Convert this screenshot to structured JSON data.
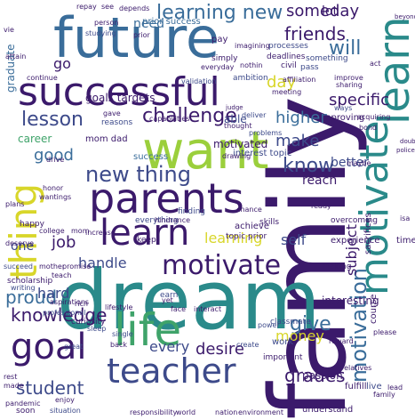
{
  "palette": {
    "navy": "#3b1a6b",
    "indigo": "#3d4a8a",
    "blue": "#3a6d9a",
    "teal": "#2a8a8a",
    "green": "#3fa36a",
    "lime": "#9bcf3c",
    "yellow": "#d8d62a"
  },
  "words": {
    "family": "family",
    "dream": "dream",
    "future": "future",
    "want": "want",
    "successful": "successful",
    "motivate_big": "motivate",
    "learn_big": "learn",
    "parents": "parents",
    "goal": "goal",
    "life": "life",
    "thing": "thing",
    "teacher": "teacher",
    "learn_mid": "learn",
    "motivation": "motivation",
    "new_thing": "new thing",
    "learning_new": "learning new",
    "know": "know",
    "lesson": "lesson",
    "challenge": "challenge",
    "friends": "friends",
    "will": "will",
    "someday": "someday",
    "lot": "lot",
    "student": "student",
    "knowledge": "knowledge",
    "proud": "proud",
    "give": "give",
    "grades": "grades",
    "make": "make",
    "higher": "higher",
    "specific": "specific",
    "hard": "hard",
    "money": "money",
    "desire": "desire",
    "every": "every",
    "self": "self",
    "learning": "learning",
    "job": "job",
    "handle": "handle",
    "good": "good",
    "day": "day",
    "subject": "subject",
    "go": "go",
    "need": "need",
    "graduate": "graduate",
    "career": "career",
    "better": "better",
    "reach": "reach",
    "able": "able",
    "one": "one",
    "goals_targets": "goals targets",
    "motivated": "motivated",
    "interest_topic": "interest topic",
    "mom_dad": "mom dad",
    "prior_success": "prior success",
    "success": "success",
    "interesting": "interesting",
    "experience": "experience",
    "improving": "improving",
    "work": "work",
    "passion": "passion",
    "course": "course",
    "fulfill": "fulfill",
    "live": "live",
    "classmate": "classmate",
    "power": "power",
    "earn": "earn",
    "time": "time",
    "sacrifices": "sacrifices",
    "achieve": "achieve",
    "topic_prior": "topic prior",
    "everything": "everything",
    "making": "making",
    "finding": "finding",
    "skills": "skills",
    "simply": "simply",
    "deadlines": "deadlines",
    "processes": "processes",
    "something": "something",
    "ambition": "ambition",
    "civil": "civil",
    "pass": "pass",
    "ways": "ways",
    "acquiring": "acquiring",
    "deliver": "deliver",
    "thought": "thought",
    "problems": "problems",
    "keep": "keep",
    "overcoming": "overcoming",
    "hindrance": "hindrance",
    "drive": "drive",
    "important": "important",
    "reasons": "reasons",
    "gave": "gave",
    "validation": "validation",
    "person": "person",
    "prior": "prior",
    "pay": "pay",
    "see": "see",
    "depends": "depends",
    "repay": "repay",
    "studying": "studying",
    "continue": "continue",
    "vie": "vie",
    "attain": "attain",
    "happy": "happy",
    "scholarship": "scholarship",
    "writing": "writing",
    "aspirations": "aspirations",
    "professional": "professional",
    "curiosity": "curiosity",
    "sleep": "sleep",
    "single": "single",
    "lifestyle": "lifestyle",
    "rich": "rich",
    "college": "college",
    "mother": "mother",
    "mom": "mom",
    "promise": "promise",
    "teach": "teach",
    "deserve": "deserve",
    "wantings": "wantings",
    "honor": "honor",
    "plans": "plans",
    "succeed": "succeed",
    "understand": "understand",
    "situation": "situation",
    "responsibility": "responsibility",
    "environment": "environment",
    "relatives": "relatives",
    "please": "please",
    "reward": "reward",
    "create": "create",
    "face": "face",
    "interact": "interact",
    "great": "great",
    "increase": "increase",
    "everyday": "everyday",
    "imagining": "imagining",
    "affiliation": "affiliation",
    "nothin": "nothin",
    "sharing": "sharing",
    "improve": "improve",
    "meeting": "meeting",
    "bond": "bond",
    "doubt": "doubt",
    "police": "police",
    "maybe": "maybe",
    "ready": "ready",
    "chance": "chance",
    "drawing": "drawing",
    "judge": "judge",
    "beyond": "beyond",
    "act": "act",
    "capabilities": "capabilities",
    "rest": "rest",
    "made": "made",
    "pandemic": "pandemic",
    "soon": "soon",
    "enjoy": "enjoy",
    "back": "back",
    "world": "world",
    "nation": "nation",
    "yet": "yet",
    "lead": "lead",
    "family_small": "family",
    "isa": "isa"
  }
}
